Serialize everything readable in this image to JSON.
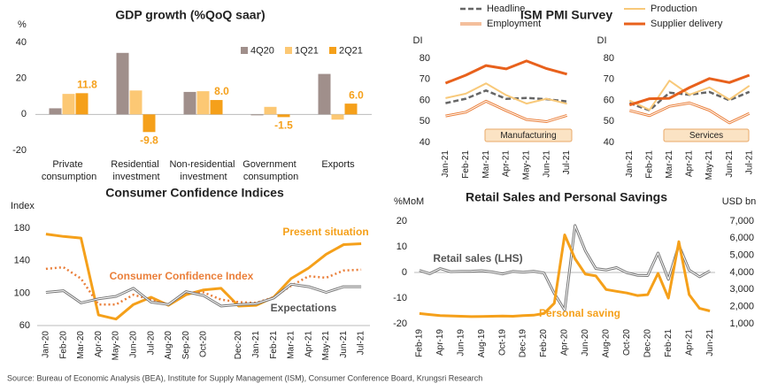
{
  "chart_data": [
    {
      "type": "bar",
      "title": "GDP growth (%QoQ saar)",
      "ylabel": "%",
      "categories": [
        "Private consumption",
        "Residential investment",
        "Non-residential investment",
        "Government consumption",
        "Exports"
      ],
      "series": [
        {
          "name": "4Q20",
          "color": "#a08f8b",
          "values": [
            3.4,
            34.2,
            12.5,
            -0.5,
            22.5
          ]
        },
        {
          "name": "1Q21",
          "color": "#fcc874",
          "values": [
            11.4,
            13.3,
            12.9,
            4.2,
            -2.9
          ]
        },
        {
          "name": "2Q21",
          "color": "#f5a01a",
          "values": [
            11.8,
            -9.8,
            8.0,
            -1.5,
            6.0
          ],
          "value_labels": [
            "11.8",
            "-9.8",
            "8.0",
            "-1.5",
            "6.0"
          ]
        }
      ],
      "ylim": [
        -20,
        40
      ],
      "yticks": [
        -20,
        0,
        20,
        40
      ]
    },
    {
      "type": "line-panels",
      "title": "ISM PMI Survey",
      "ylabel": "DI",
      "categories": [
        "Jan-21",
        "Feb-21",
        "Mar-21",
        "Apr-21",
        "May-21",
        "Jun-21",
        "Jul-21"
      ],
      "series": [
        {
          "name": "Headline",
          "color": "#666666",
          "style": "dashed"
        },
        {
          "name": "Production",
          "color": "#f8c97a",
          "style": "solid"
        },
        {
          "name": "Employment",
          "color": "#ea7f3a",
          "style": "double"
        },
        {
          "name": "Supplier delivery",
          "color": "#e8611c",
          "style": "thick"
        }
      ],
      "panels": [
        {
          "label": "Manufacturing",
          "series": [
            {
              "values": [
                58.7,
                60.8,
                64.7,
                60.7,
                61.2,
                60.6,
                59.5
              ]
            },
            {
              "values": [
                61.1,
                63.2,
                68.1,
                62.5,
                58.5,
                60.8,
                58.4
              ]
            },
            {
              "values": [
                52.6,
                54.4,
                59.6,
                55.1,
                50.9,
                49.9,
                52.9
              ]
            },
            {
              "values": [
                68.2,
                72.0,
                76.6,
                75.0,
                78.8,
                75.1,
                72.5
              ]
            }
          ]
        },
        {
          "label": "Services",
          "series": [
            {
              "values": [
                58.7,
                55.3,
                63.7,
                62.7,
                64.0,
                60.1,
                64.1
              ]
            },
            {
              "values": [
                59.9,
                55.5,
                69.4,
                62.7,
                66.2,
                60.4,
                67.0
              ]
            },
            {
              "values": [
                55.2,
                52.7,
                57.2,
                58.8,
                55.3,
                49.3,
                53.8
              ]
            },
            {
              "values": [
                57.8,
                60.8,
                61.0,
                66.1,
                70.4,
                68.5,
                72.0
              ]
            }
          ]
        }
      ],
      "ylim": [
        40,
        80
      ],
      "yticks": [
        40,
        50,
        60,
        70,
        80
      ]
    },
    {
      "type": "line",
      "title": "Consumer Confidence Indices",
      "ylabel": "Index",
      "categories": [
        "Jan-20",
        "Feb-20",
        "Mar-20",
        "Apr-20",
        "May-20",
        "Jun-20",
        "Jul-20",
        "Aug-20",
        "Sep-20",
        "Oct-20",
        null,
        "Dec-20",
        "Jan-21",
        "Feb-21",
        "Mar-21",
        "Apr-21",
        "May-21",
        "Jun-21",
        "Jul-21"
      ],
      "series": [
        {
          "name": "Present situation",
          "color": "#f5a01a",
          "style": "thick",
          "values": [
            173,
            170,
            168,
            73,
            68,
            86,
            95,
            85,
            98,
            104,
            106,
            84,
            85,
            95,
            118,
            131,
            148,
            160,
            161
          ]
        },
        {
          "name": "Consumer Confidence Index",
          "color": "#ea7f3a",
          "style": "dotted",
          "values": [
            130,
            132,
            118,
            86,
            86,
            98,
            92,
            86,
            101,
            101,
            92,
            89,
            88,
            95,
            109,
            121,
            119,
            128,
            129
          ]
        },
        {
          "name": "Expectations",
          "color": "#777777",
          "style": "double",
          "values": [
            101,
            103,
            88,
            93,
            96,
            106,
            89,
            86,
            102,
            97,
            84,
            86,
            87,
            94,
            111,
            108,
            101,
            108,
            108
          ]
        }
      ],
      "ylim": [
        60,
        190
      ],
      "yticks": [
        60,
        100,
        140,
        180
      ]
    },
    {
      "type": "line",
      "title": "Retail Sales and Personal Savings",
      "ylabel": "%MoM",
      "y2label": "USD bn",
      "categories": [
        "Feb-19",
        null,
        "Apr-19",
        null,
        "Jun-19",
        null,
        "Aug-19",
        null,
        "Oct-19",
        null,
        "Dec-19",
        null,
        "Feb-20",
        null,
        "Apr-20",
        null,
        "Jun-20",
        null,
        "Aug-20",
        null,
        "Oct-20",
        null,
        "Dec-20",
        null,
        "Feb-21",
        null,
        "Apr-21",
        null,
        "Jun-21"
      ],
      "series": [
        {
          "name": "Retail sales (LHS)",
          "color": "#777777",
          "style": "double",
          "values": [
            0.8,
            -0.5,
            1.5,
            0.3,
            0.4,
            0.5,
            0.7,
            0.2,
            -0.6,
            0.4,
            0.1,
            0.5,
            -0.2,
            -8.2,
            -14.7,
            18.3,
            8.4,
            1.5,
            1.0,
            1.9,
            -0.1,
            -1.1,
            -1.2,
            7.6,
            -2.7,
            10.7,
            0.9,
            -1.7,
            0.6
          ]
        },
        {
          "name": "Personal saving",
          "color": "#f5a01a",
          "style": "thick",
          "axis": "y2",
          "values": [
            1600,
            1540,
            1480,
            1460,
            1440,
            1420,
            1430,
            1440,
            1450,
            1440,
            1480,
            1500,
            1600,
            2200,
            6200,
            4800,
            3900,
            3800,
            3000,
            2900,
            2800,
            2650,
            2700,
            3950,
            2500,
            5800,
            2700,
            1900,
            1750
          ]
        }
      ],
      "ylim": [
        -20,
        20
      ],
      "yticks": [
        -20,
        -10,
        0,
        10,
        20
      ],
      "y2lim": [
        1000,
        7000
      ],
      "y2ticks": [
        {
          "value": 1000,
          "label": "1,000"
        },
        {
          "value": 2000,
          "label": "2,000"
        },
        {
          "value": 3000,
          "label": "3,000"
        },
        {
          "value": 4000,
          "label": "4,000"
        },
        {
          "value": 5000,
          "label": "5,000"
        },
        {
          "value": 6000,
          "label": "6,000"
        },
        {
          "value": 7000,
          "label": "7,000"
        }
      ]
    }
  ],
  "source": "Source: Bureau of Economic Analysis (BEA), Institute for Supply Management (ISM), Consumer Conference Board, Krungsri Research"
}
